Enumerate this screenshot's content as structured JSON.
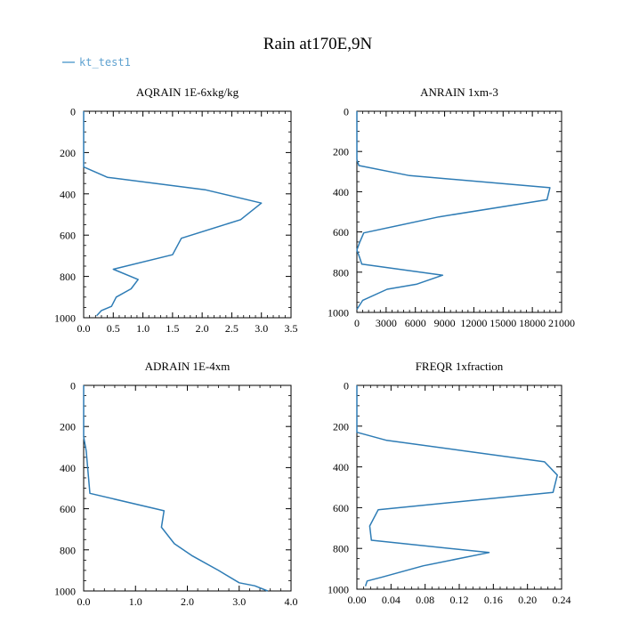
{
  "figure": {
    "title": "Rain at170E,9N",
    "legend_label": "kt_test1",
    "line_color": "#2e7cb5",
    "legend_color": "#5fa2d0"
  },
  "chart_data": [
    {
      "type": "line",
      "title": "AQRAIN  1E-6xkg/kg",
      "xlim": [
        0,
        3.5
      ],
      "ylim": [
        1000,
        0
      ],
      "y_inverted": true,
      "x_ticks": [
        0,
        0.5,
        1,
        1.5,
        2,
        2.5,
        3,
        3.5
      ],
      "x_tick_labels": [
        "0.0",
        "0.5",
        "1.0",
        "1.5",
        "2.0",
        "2.5",
        "3.0",
        "3.5"
      ],
      "y_ticks": [
        0,
        200,
        400,
        600,
        800,
        1000
      ],
      "y_tick_labels": [
        "0",
        "200",
        "400",
        "600",
        "800",
        "1000"
      ],
      "series": [
        {
          "x": [
            0,
            0,
            0.0,
            0.4,
            2.05,
            3.0,
            2.65,
            1.65,
            1.5,
            0.5,
            0.92,
            0.8,
            0.55,
            0.47,
            0.3,
            0.22
          ],
          "y": [
            0,
            260,
            270,
            320,
            380,
            445,
            525,
            615,
            695,
            765,
            815,
            860,
            900,
            945,
            965,
            990
          ]
        }
      ]
    },
    {
      "type": "line",
      "title": "ANRAIN  1xm-3",
      "xlim": [
        0,
        21000
      ],
      "ylim": [
        1000,
        0
      ],
      "y_inverted": true,
      "x_ticks": [
        0,
        3000,
        6000,
        9000,
        12000,
        15000,
        18000,
        21000
      ],
      "x_tick_labels": [
        "0",
        "3000",
        "6000",
        "9000",
        "12000",
        "15000",
        "18000",
        "21000"
      ],
      "y_ticks": [
        0,
        200,
        400,
        600,
        800,
        1000
      ],
      "y_tick_labels": [
        "0",
        "200",
        "400",
        "600",
        "800",
        "1000"
      ],
      "series": [
        {
          "x": [
            0,
            0,
            200,
            5400,
            19800,
            19500,
            8400,
            700,
            300,
            0,
            300,
            500,
            8800,
            6100,
            3100,
            600,
            0
          ],
          "y": [
            0,
            240,
            270,
            320,
            380,
            440,
            525,
            605,
            650,
            690,
            730,
            760,
            815,
            860,
            885,
            940,
            985
          ]
        }
      ]
    },
    {
      "type": "line",
      "title": "ADRAIN  1E-4xm",
      "xlim": [
        0,
        4
      ],
      "ylim": [
        1000,
        0
      ],
      "y_inverted": true,
      "x_ticks": [
        0,
        1,
        2,
        3,
        4
      ],
      "x_tick_labels": [
        "0.0",
        "1.0",
        "2.0",
        "3.0",
        "4.0"
      ],
      "y_ticks": [
        0,
        200,
        400,
        600,
        800,
        1000
      ],
      "y_tick_labels": [
        "0",
        "200",
        "400",
        "600",
        "800",
        "1000"
      ],
      "series": [
        {
          "x": [
            0,
            0,
            0.05,
            0.12,
            1.55,
            1.5,
            1.75,
            2.1,
            2.6,
            3.0,
            3.3,
            3.55
          ],
          "y": [
            0,
            250,
            320,
            525,
            610,
            690,
            770,
            830,
            900,
            960,
            975,
            1000
          ]
        }
      ]
    },
    {
      "type": "line",
      "title": "FREQR  1xfraction",
      "xlim": [
        0,
        0.24
      ],
      "ylim": [
        1000,
        0
      ],
      "y_inverted": true,
      "x_ticks": [
        0,
        0.04,
        0.08,
        0.12,
        0.16,
        0.2,
        0.24
      ],
      "x_tick_labels": [
        "0.00",
        "0.04",
        "0.08",
        "0.12",
        "0.16",
        "0.20",
        "0.24"
      ],
      "y_ticks": [
        0,
        200,
        400,
        600,
        800,
        1000
      ],
      "y_tick_labels": [
        "0",
        "200",
        "400",
        "600",
        "800",
        "1000"
      ],
      "series": [
        {
          "x": [
            0,
            0,
            0.035,
            0.22,
            0.235,
            0.23,
            0.025,
            0.015,
            0.017,
            0.155,
            0.078,
            0.03,
            0.012,
            0.01
          ],
          "y": [
            0,
            230,
            270,
            375,
            440,
            525,
            610,
            690,
            760,
            820,
            885,
            940,
            960,
            985
          ]
        }
      ]
    }
  ]
}
